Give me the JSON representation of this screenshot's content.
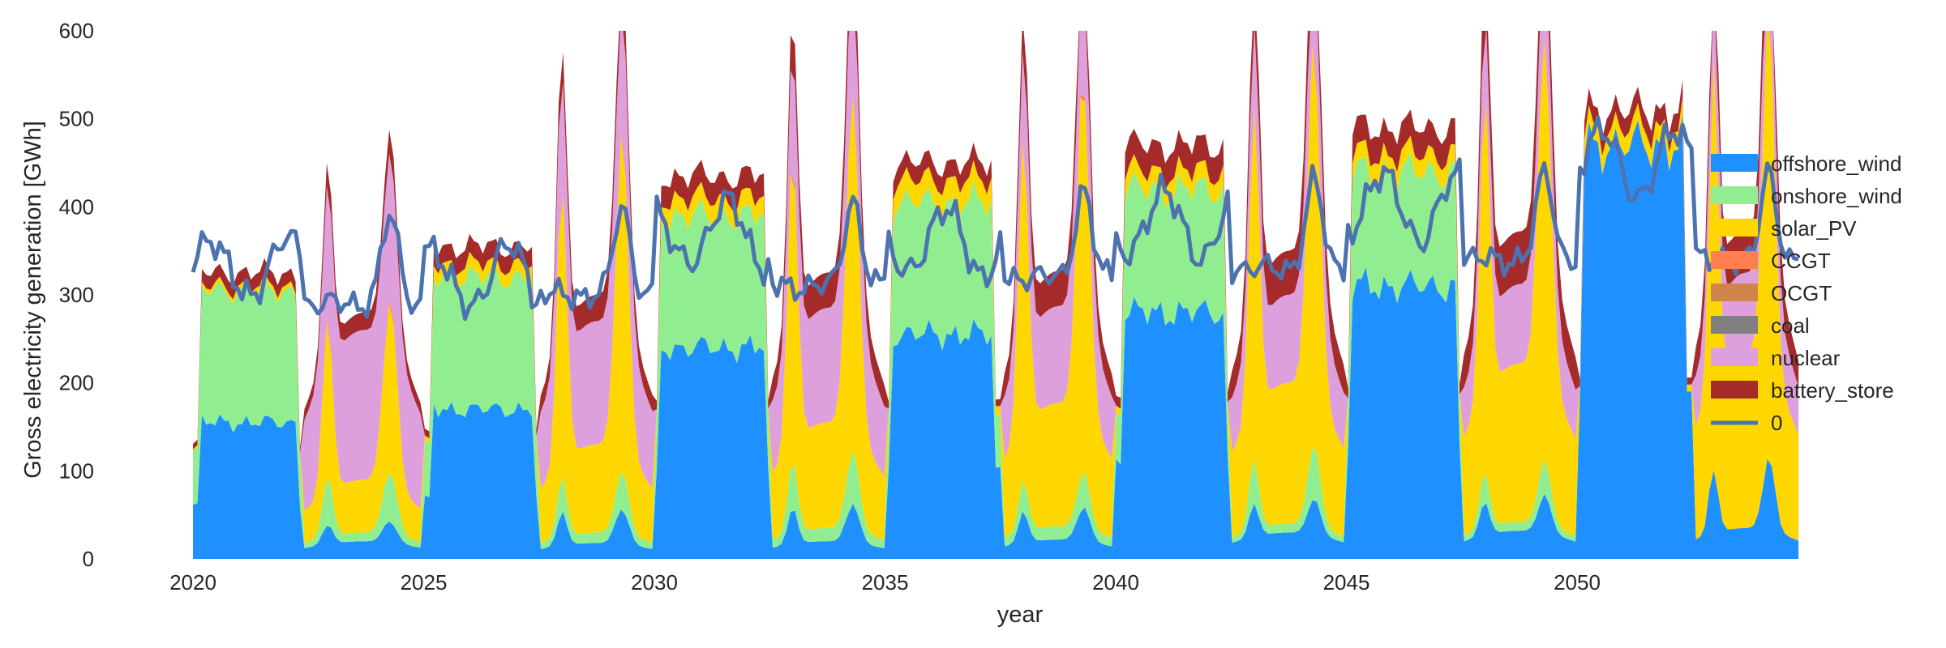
{
  "chart_data": {
    "type": "area",
    "title": "",
    "xlabel": "year",
    "ylabel": "Gross electricity generation [GWh]",
    "xlim": [
      2020,
      2055
    ],
    "ylim": [
      0,
      600
    ],
    "x_ticks": [
      "2020",
      "2025",
      "2030",
      "2035",
      "2040",
      "2045",
      "2050"
    ],
    "y_ticks": [
      "0",
      "100",
      "200",
      "300",
      "400",
      "500",
      "600"
    ],
    "grid": false,
    "legend_position": "right",
    "stacked": true,
    "periods": [
      {
        "start": 2020.0,
        "end": 2022.4,
        "kind": "winter"
      },
      {
        "start": 2022.4,
        "end": 2025.0,
        "kind": "summer"
      },
      {
        "start": 2025.0,
        "end": 2027.5,
        "kind": "winter"
      },
      {
        "start": 2027.5,
        "end": 2030.0,
        "kind": "summer"
      },
      {
        "start": 2030.0,
        "end": 2032.5,
        "kind": "winter"
      },
      {
        "start": 2032.5,
        "end": 2035.0,
        "kind": "summer"
      },
      {
        "start": 2035.0,
        "end": 2037.5,
        "kind": "winter"
      },
      {
        "start": 2037.5,
        "end": 2040.0,
        "kind": "summer"
      },
      {
        "start": 2040.0,
        "end": 2042.5,
        "kind": "winter"
      },
      {
        "start": 2042.5,
        "end": 2045.0,
        "kind": "summer"
      },
      {
        "start": 2045.0,
        "end": 2047.5,
        "kind": "winter"
      },
      {
        "start": 2047.5,
        "end": 2050.0,
        "kind": "summer"
      },
      {
        "start": 2050.0,
        "end": 2052.5,
        "kind": "winter"
      },
      {
        "start": 2052.5,
        "end": 2054.8,
        "kind": "summer"
      }
    ],
    "series": [
      {
        "name": "offshore_wind",
        "color": "#1e90ff",
        "winter_values": [
          155,
          170,
          240,
          255,
          280,
          310,
          470
        ],
        "summer_values": [
          20,
          18,
          20,
          22,
          30,
          32,
          35
        ],
        "summer_peak": [
          45,
          60,
          65,
          60,
          70,
          75,
          120
        ]
      },
      {
        "name": "onshore_wind",
        "color": "#90ee90",
        "winter_values": [
          150,
          150,
          150,
          150,
          140,
          130,
          0
        ],
        "summer_values": [
          10,
          12,
          15,
          15,
          10,
          10,
          0
        ],
        "summer_peak": [
          60,
          45,
          60,
          40,
          60,
          40,
          0
        ]
      },
      {
        "name": "solar_PV",
        "color": "#ffd700",
        "winter_values": [
          5,
          15,
          20,
          25,
          20,
          20,
          20
        ],
        "summer_values": [
          60,
          100,
          120,
          140,
          160,
          180,
          200
        ],
        "summer_peak": [
          200,
          380,
          400,
          450,
          470,
          500,
          520
        ]
      },
      {
        "name": "CCGT",
        "color": "#ff7f50",
        "winter_values": [
          0,
          0,
          0,
          0,
          0,
          0,
          0
        ],
        "summer_values": [
          0,
          0,
          0,
          0,
          0,
          0,
          0
        ],
        "summer_peak": [
          5,
          5,
          5,
          5,
          5,
          5,
          5
        ]
      },
      {
        "name": "OCGT",
        "color": "#d2854a",
        "winter_values": [
          0,
          0,
          0,
          0,
          0,
          0,
          0
        ],
        "summer_values": [
          0,
          0,
          0,
          0,
          0,
          0,
          0
        ],
        "summer_peak": [
          0,
          0,
          0,
          0,
          0,
          0,
          0
        ]
      },
      {
        "name": "coal",
        "color": "#808080",
        "winter_values": [
          0,
          0,
          0,
          0,
          0,
          0,
          0
        ],
        "summer_values": [
          0,
          0,
          0,
          0,
          0,
          0,
          0
        ],
        "summer_peak": [
          0,
          0,
          0,
          0,
          0,
          0,
          0
        ]
      },
      {
        "name": "nuclear",
        "color": "#dda0dd",
        "winter_values": [
          0,
          0,
          0,
          0,
          0,
          0,
          0
        ],
        "summer_values": [
          170,
          140,
          130,
          110,
          100,
          90,
          90
        ],
        "summer_peak": [
          180,
          150,
          140,
          120,
          110,
          100,
          100
        ]
      },
      {
        "name": "battery_store",
        "color": "#a52a2a",
        "winter_values": [
          15,
          20,
          25,
          20,
          30,
          30,
          20
        ],
        "summer_values": [
          20,
          30,
          40,
          40,
          50,
          60,
          50
        ],
        "summer_peak": [
          30,
          40,
          50,
          50,
          60,
          70,
          60
        ]
      }
    ],
    "line_series": {
      "name": "0",
      "color": "#4c72b0",
      "winter_values": [
        330,
        320,
        370,
        360,
        380,
        400,
        450
      ],
      "summer_values": [
        290,
        300,
        310,
        320,
        330,
        340,
        340
      ]
    }
  }
}
